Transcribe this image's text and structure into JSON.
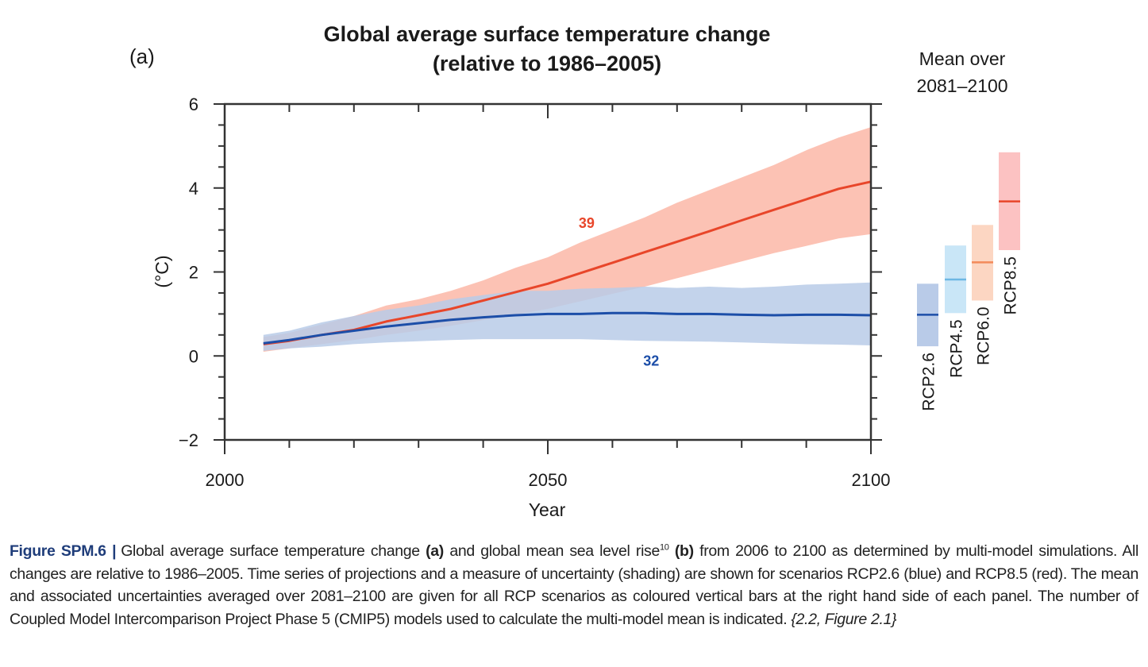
{
  "panel_label": "(a)",
  "chart_data": {
    "type": "line",
    "title": "Global average surface temperature change",
    "subtitle": "(relative to 1986–2005)",
    "xlabel": "Year",
    "ylabel": "(°C)",
    "xlim": [
      2000,
      2100
    ],
    "ylim": [
      -2,
      6
    ],
    "x_ticks": [
      "2000",
      "2050",
      "2100"
    ],
    "y_ticks": [
      "−2",
      "0",
      "2",
      "4",
      "6"
    ],
    "grid": false,
    "series": [
      {
        "name": "RCP8.5",
        "color": "#e8462a",
        "band_color": "#fcc2b4",
        "model_count": "39",
        "x": [
          2006,
          2010,
          2015,
          2020,
          2025,
          2030,
          2035,
          2040,
          2045,
          2050,
          2055,
          2060,
          2065,
          2070,
          2075,
          2080,
          2085,
          2090,
          2095,
          2100
        ],
        "mean": [
          0.28,
          0.36,
          0.5,
          0.62,
          0.82,
          0.97,
          1.12,
          1.32,
          1.52,
          1.72,
          1.97,
          2.22,
          2.47,
          2.72,
          2.97,
          3.23,
          3.48,
          3.73,
          3.98,
          4.15
        ],
        "upper": [
          0.45,
          0.55,
          0.75,
          0.95,
          1.2,
          1.35,
          1.55,
          1.8,
          2.1,
          2.35,
          2.7,
          3.0,
          3.3,
          3.65,
          3.95,
          4.25,
          4.55,
          4.9,
          5.2,
          5.45
        ],
        "lower": [
          0.1,
          0.18,
          0.28,
          0.38,
          0.5,
          0.6,
          0.72,
          0.85,
          0.98,
          1.12,
          1.3,
          1.48,
          1.65,
          1.85,
          2.05,
          2.25,
          2.45,
          2.62,
          2.8,
          2.9
        ]
      },
      {
        "name": "RCP2.6",
        "color": "#1c4ea8",
        "band_color": "#b9cbe8",
        "model_count": "32",
        "x": [
          2006,
          2010,
          2015,
          2020,
          2025,
          2030,
          2035,
          2040,
          2045,
          2050,
          2055,
          2060,
          2065,
          2070,
          2075,
          2080,
          2085,
          2090,
          2095,
          2100
        ],
        "mean": [
          0.3,
          0.38,
          0.5,
          0.6,
          0.7,
          0.78,
          0.86,
          0.92,
          0.97,
          1.0,
          1.0,
          1.02,
          1.02,
          1.0,
          1.0,
          0.98,
          0.97,
          0.98,
          0.98,
          0.97
        ],
        "upper": [
          0.5,
          0.6,
          0.8,
          0.95,
          1.1,
          1.2,
          1.35,
          1.45,
          1.55,
          1.55,
          1.6,
          1.62,
          1.65,
          1.62,
          1.65,
          1.62,
          1.65,
          1.7,
          1.72,
          1.75
        ],
        "lower": [
          0.12,
          0.18,
          0.22,
          0.28,
          0.32,
          0.35,
          0.38,
          0.4,
          0.4,
          0.4,
          0.4,
          0.38,
          0.36,
          0.35,
          0.34,
          0.32,
          0.3,
          0.28,
          0.27,
          0.25
        ]
      }
    ],
    "side_panel": {
      "title_line1": "Mean over",
      "title_line2": "2081–2100",
      "bars": [
        {
          "name": "RCP2.6",
          "mean": 0.98,
          "low": 0.23,
          "high": 1.72,
          "fill": "#b9cbe8",
          "line": "#1c4ea8"
        },
        {
          "name": "RCP4.5",
          "mean": 1.82,
          "low": 1.02,
          "high": 2.63,
          "fill": "#c9e6f7",
          "line": "#6db7e3"
        },
        {
          "name": "RCP6.0",
          "mean": 2.23,
          "low": 1.32,
          "high": 3.12,
          "fill": "#fcd6c2",
          "line": "#f38a5a"
        },
        {
          "name": "RCP8.5",
          "mean": 3.68,
          "low": 2.52,
          "high": 4.85,
          "fill": "#fcc2c2",
          "line": "#e8462a"
        }
      ]
    }
  },
  "caption": {
    "label": "Figure SPM.6",
    "sep": "|",
    "part1": "Global average surface temperature change ",
    "a": "(a)",
    "part2": " and global mean sea level rise",
    "footnote": "10",
    "b": "(b)",
    "part3": " from 2006 to 2100 as determined by multi-model simulations. All changes are relative to 1986–2005. Time series of projections and a measure of uncertainty (shading) are shown for scenarios RCP2.6 (blue) and RCP8.5 (red). The mean and associated uncertainties averaged over 2081–2100 are given for all RCP scenarios as coloured vertical bars at the right hand side of each panel. The number of Coupled Model Intercomparison Project Phase 5 (CMIP5) models used to calculate the multi-model mean is indicated. ",
    "ref": "{2.2, Figure 2.1}"
  }
}
